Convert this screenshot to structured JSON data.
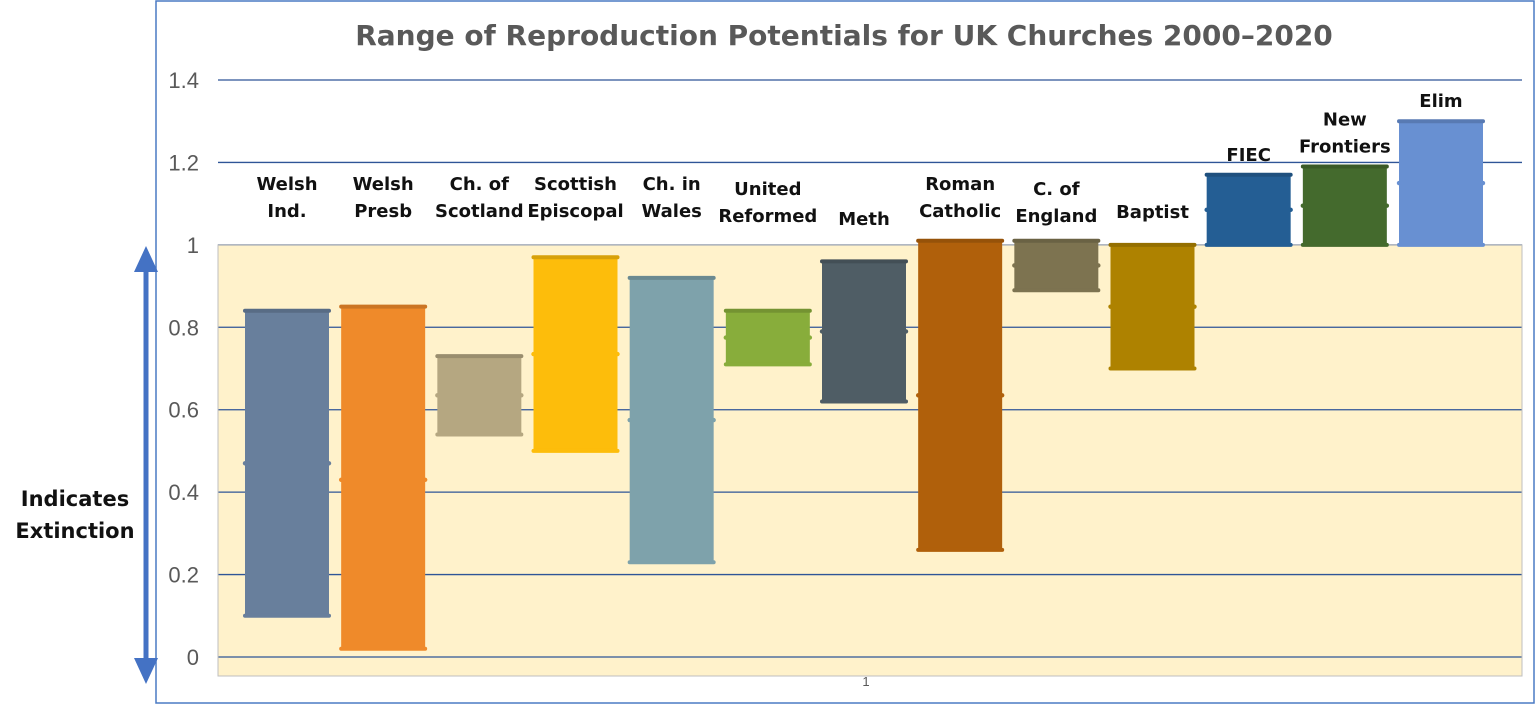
{
  "chart_data": {
    "type": "bar",
    "subtype": "floating-range",
    "title": "Range of Reproduction Potentials for UK Churches 2000–2020",
    "ylim": [
      0,
      1.4
    ],
    "yticks": [
      "0",
      "0.2",
      "0.4",
      "0.6",
      "0.8",
      "1",
      "1.2",
      "1.4"
    ],
    "ytick_values": [
      0,
      0.2,
      0.4,
      0.6,
      0.8,
      1.0,
      1.2,
      1.4
    ],
    "grid": true,
    "extinction_threshold": 1.0,
    "xtick_label": "1",
    "side_annotation": [
      "Indicates",
      "Extinction"
    ],
    "categories": [
      [
        "Welsh",
        "Ind."
      ],
      [
        "Welsh",
        "Presb"
      ],
      [
        "Ch. of",
        "Scotland"
      ],
      [
        "Scottish",
        "Episcopal"
      ],
      [
        "Ch. in",
        "Wales"
      ],
      [
        "United",
        "Reformed"
      ],
      [
        "Meth"
      ],
      [
        "Roman",
        "Catholic"
      ],
      [
        "C. of",
        "England"
      ],
      [
        "Baptist"
      ],
      [
        "FIEC"
      ],
      [
        "New",
        "Frontiers"
      ],
      [
        "Elim"
      ]
    ],
    "ranges": [
      {
        "low": 0.1,
        "mid": 0.47,
        "high": 0.84,
        "color": "#687f9c"
      },
      {
        "low": 0.02,
        "mid": 0.43,
        "high": 0.85,
        "color": "#ef8a2a"
      },
      {
        "low": 0.54,
        "mid": 0.635,
        "high": 0.73,
        "color": "#b5a781"
      },
      {
        "low": 0.5,
        "mid": 0.735,
        "high": 0.97,
        "color": "#fdbd0b"
      },
      {
        "low": 0.23,
        "mid": 0.575,
        "high": 0.92,
        "color": "#7ea2ab"
      },
      {
        "low": 0.71,
        "mid": 0.775,
        "high": 0.84,
        "color": "#88ad3b"
      },
      {
        "low": 0.62,
        "mid": 0.79,
        "high": 0.96,
        "color": "#4f5d65"
      },
      {
        "low": 0.26,
        "mid": 0.635,
        "high": 1.01,
        "color": "#b0600b"
      },
      {
        "low": 0.89,
        "mid": 0.95,
        "high": 1.01,
        "color": "#7d7350"
      },
      {
        "low": 0.7,
        "mid": 0.85,
        "high": 1.0,
        "color": "#ae8200"
      },
      {
        "low": 1.0,
        "mid": 1.085,
        "high": 1.17,
        "color": "#245e94"
      },
      {
        "low": 1.0,
        "mid": 1.095,
        "high": 1.19,
        "color": "#446a2d"
      },
      {
        "low": 1.0,
        "mid": 1.15,
        "high": 1.3,
        "color": "#6890d2"
      }
    ],
    "colors": {
      "frame": "#4a7ac4",
      "gridline": "#2f5597",
      "below_one_fill": "#fff2cb",
      "arrow": "#4472c4",
      "title": "#595959",
      "tick_text": "#595959"
    }
  }
}
